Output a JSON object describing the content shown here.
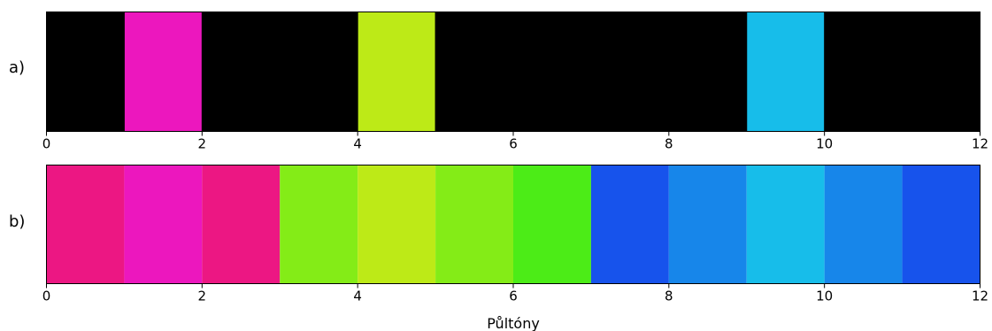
{
  "chart_data": [
    {
      "type": "heatmap",
      "panel_label": "a)",
      "xlim": [
        0,
        12
      ],
      "xticks": [
        0,
        2,
        4,
        6,
        8,
        10,
        12
      ],
      "background": "#000000",
      "segments": [
        {
          "start": 1,
          "end": 2,
          "color": "#ec17be"
        },
        {
          "start": 4,
          "end": 5,
          "color": "#bdea17"
        },
        {
          "start": 9,
          "end": 10,
          "color": "#17bdea"
        }
      ]
    },
    {
      "type": "heatmap",
      "panel_label": "b)",
      "xlim": [
        0,
        12
      ],
      "xticks": [
        0,
        2,
        4,
        6,
        8,
        10,
        12
      ],
      "xlabel": "Půltóny",
      "segments": [
        {
          "start": 0,
          "end": 1,
          "color": "#ec1783"
        },
        {
          "start": 1,
          "end": 2,
          "color": "#ec17be"
        },
        {
          "start": 2,
          "end": 3,
          "color": "#ec1783"
        },
        {
          "start": 3,
          "end": 4,
          "color": "#84ec17"
        },
        {
          "start": 4,
          "end": 5,
          "color": "#bdea17"
        },
        {
          "start": 5,
          "end": 6,
          "color": "#84ec17"
        },
        {
          "start": 6,
          "end": 7,
          "color": "#4cec17"
        },
        {
          "start": 7,
          "end": 8,
          "color": "#1753ec"
        },
        {
          "start": 8,
          "end": 9,
          "color": "#1786ea"
        },
        {
          "start": 9,
          "end": 10,
          "color": "#17bdea"
        },
        {
          "start": 10,
          "end": 11,
          "color": "#1786ea"
        },
        {
          "start": 11,
          "end": 12,
          "color": "#1753ec"
        }
      ]
    }
  ]
}
